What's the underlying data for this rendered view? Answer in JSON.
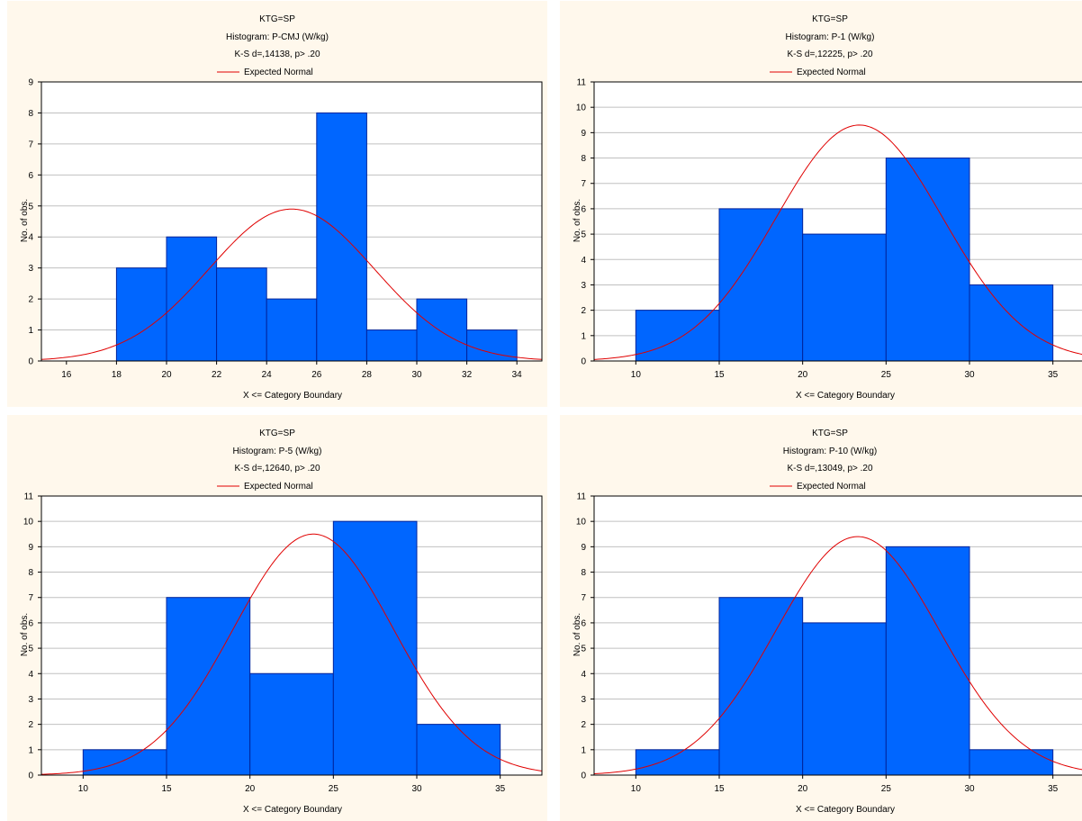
{
  "legend_label": "Expected Normal",
  "chart_data": [
    {
      "type": "bar",
      "title": "KTG=SP",
      "subtitle": "Histogram: P-CMJ (W/kg)",
      "stats": "K-S d=,14138, p> .20",
      "xlabel": "X <= Category Boundary",
      "ylabel": "No. of obs.",
      "xlim": [
        15,
        35
      ],
      "ylim": [
        0,
        9
      ],
      "xticks": [
        16,
        18,
        20,
        22,
        24,
        26,
        28,
        30,
        32,
        34
      ],
      "yticks": [
        0,
        1,
        2,
        3,
        4,
        5,
        6,
        7,
        8,
        9
      ],
      "bins": [
        [
          18,
          20
        ],
        [
          20,
          22
        ],
        [
          22,
          24
        ],
        [
          24,
          26
        ],
        [
          26,
          28
        ],
        [
          28,
          30
        ],
        [
          30,
          32
        ],
        [
          32,
          34
        ]
      ],
      "values": [
        3,
        4,
        3,
        2,
        8,
        1,
        2,
        1
      ],
      "normal": {
        "mean": 25.0,
        "sd": 3.3,
        "scale": 4.9
      },
      "grid": true,
      "legend_position": "top",
      "bar_color": "#0066ff",
      "curve_color": "#e00000"
    },
    {
      "type": "bar",
      "title": "KTG=SP",
      "subtitle": "Histogram: P-1 (W/kg)",
      "stats": "K-S d=,12225, p> .20",
      "xlabel": "X <= Category Boundary",
      "ylabel": "No. of obs.",
      "xlim": [
        7.5,
        37.5
      ],
      "ylim": [
        0,
        11
      ],
      "xticks": [
        10,
        15,
        20,
        25,
        30,
        35
      ],
      "yticks": [
        0,
        1,
        2,
        3,
        4,
        5,
        6,
        7,
        8,
        9,
        10,
        11
      ],
      "bins": [
        [
          10,
          15
        ],
        [
          15,
          20
        ],
        [
          20,
          25
        ],
        [
          25,
          30
        ],
        [
          30,
          35
        ]
      ],
      "values": [
        2,
        6,
        5,
        8,
        3
      ],
      "normal": {
        "mean": 23.4,
        "sd": 5.0,
        "scale": 9.3
      },
      "grid": true,
      "legend_position": "top",
      "bar_color": "#0066ff",
      "curve_color": "#e00000"
    },
    {
      "type": "bar",
      "title": "KTG=SP",
      "subtitle": "Histogram: P-5 (W/kg)",
      "stats": "K-S d=,12640, p> .20",
      "xlabel": "X <= Category Boundary",
      "ylabel": "No. of obs.",
      "xlim": [
        7.5,
        37.5
      ],
      "ylim": [
        0,
        11
      ],
      "xticks": [
        10,
        15,
        20,
        25,
        30,
        35
      ],
      "yticks": [
        0,
        1,
        2,
        3,
        4,
        5,
        6,
        7,
        8,
        9,
        10,
        11
      ],
      "bins": [
        [
          10,
          15
        ],
        [
          15,
          20
        ],
        [
          20,
          25
        ],
        [
          25,
          30
        ],
        [
          30,
          35
        ]
      ],
      "values": [
        1,
        7,
        4,
        10,
        2
      ],
      "normal": {
        "mean": 23.8,
        "sd": 4.8,
        "scale": 9.5
      },
      "grid": true,
      "legend_position": "top",
      "bar_color": "#0066ff",
      "curve_color": "#e00000"
    },
    {
      "type": "bar",
      "title": "KTG=SP",
      "subtitle": "Histogram: P-10 (W/kg)",
      "stats": "K-S d=,13049, p> .20",
      "xlabel": "X <= Category Boundary",
      "ylabel": "No. of obs.",
      "xlim": [
        7.5,
        37.5
      ],
      "ylim": [
        0,
        11
      ],
      "xticks": [
        10,
        15,
        20,
        25,
        30,
        35
      ],
      "yticks": [
        0,
        1,
        2,
        3,
        4,
        5,
        6,
        7,
        8,
        9,
        10,
        11
      ],
      "bins": [
        [
          10,
          15
        ],
        [
          15,
          20
        ],
        [
          20,
          25
        ],
        [
          25,
          30
        ],
        [
          30,
          35
        ]
      ],
      "values": [
        1,
        7,
        6,
        9,
        1
      ],
      "normal": {
        "mean": 23.3,
        "sd": 4.9,
        "scale": 9.4
      },
      "grid": true,
      "legend_position": "top",
      "bar_color": "#0066ff",
      "curve_color": "#e00000"
    }
  ]
}
